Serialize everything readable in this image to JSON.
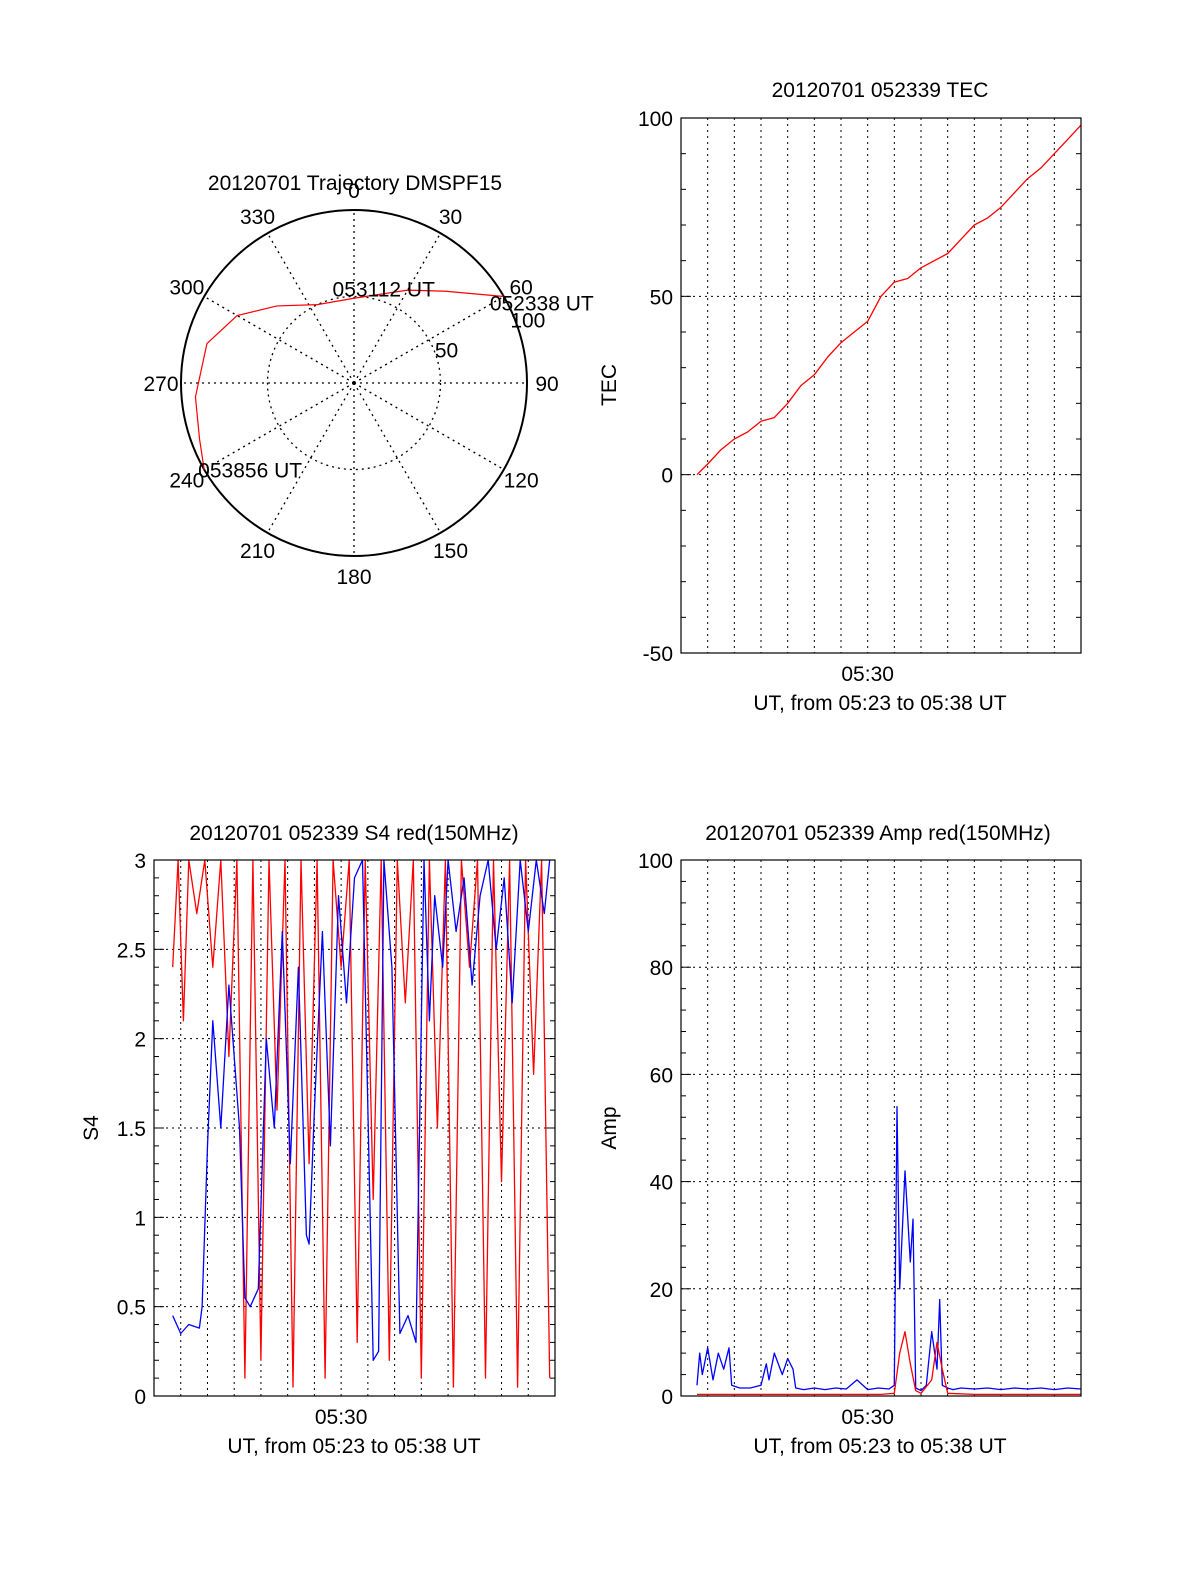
{
  "chart_data": [
    {
      "type": "polar-trajectory",
      "title": "20120701 Trajectory DMSPF15",
      "azimuth_labels": [
        "0",
        "30",
        "60",
        "90",
        "120",
        "150",
        "180",
        "210",
        "240",
        "270",
        "300",
        "330"
      ],
      "radial_labels": [
        "50",
        "100"
      ],
      "radial_range": [
        0,
        100
      ],
      "grid": true,
      "annotations": [
        {
          "text": "052338 UT",
          "azimuth": 60,
          "zenith": 100
        },
        {
          "text": "053112 UT",
          "azimuth": 25,
          "zenith": 50
        },
        {
          "text": "053856 UT",
          "azimuth": 240,
          "zenith": 100
        }
      ],
      "series": [
        {
          "color": "#ff0000",
          "points": [
            [
              60,
              100
            ],
            [
              45,
              75
            ],
            [
              30,
              62
            ],
            [
              0,
              49
            ],
            [
              -25,
              50
            ],
            [
              -45,
              63
            ],
            [
              -60,
              78
            ],
            [
              -75,
              88
            ],
            [
              -95,
              92
            ],
            [
              -110,
              95
            ],
            [
              -120,
              100
            ]
          ]
        }
      ]
    },
    {
      "type": "line",
      "title": "20120701 052339 TEC",
      "xlabel": "UT, from 05:23 to 05:38 UT",
      "ylabel": "TEC",
      "xlim": [
        0,
        15
      ],
      "ylim": [
        -50,
        100
      ],
      "yticks": [
        "-50",
        "0",
        "50",
        "100"
      ],
      "xticks": [
        {
          "value": 7,
          "label": "05:30"
        }
      ],
      "grid": true,
      "series": [
        {
          "color": "#ff0000",
          "x": [
            0.6,
            1.0,
            1.5,
            2.0,
            2.5,
            3.0,
            3.5,
            4.0,
            4.5,
            5.0,
            5.5,
            6.0,
            6.5,
            7.0,
            7.5,
            8.0,
            8.5,
            9.0,
            9.5,
            10.0,
            10.5,
            11.0,
            11.5,
            12.0,
            12.5,
            13.0,
            13.5,
            14.0,
            14.5,
            15.0
          ],
          "y": [
            0,
            3,
            7,
            10,
            12,
            15,
            16,
            20,
            25,
            28,
            33,
            37,
            40,
            43,
            50,
            54,
            55,
            58,
            60,
            62,
            66,
            70,
            72,
            75,
            79,
            83,
            86,
            90,
            94,
            98
          ]
        }
      ]
    },
    {
      "type": "line",
      "title": "20120701 052339 S4 red(150MHz)",
      "xlabel": "UT, from 05:23 to 05:38 UT",
      "ylabel": "S4",
      "xlim": [
        0,
        15
      ],
      "ylim": [
        0,
        3
      ],
      "yticks": [
        "0",
        "0.5",
        "1",
        "1.5",
        "2",
        "2.5",
        "3"
      ],
      "xticks": [
        {
          "value": 7,
          "label": "05:30"
        }
      ],
      "grid": true,
      "series": [
        {
          "color": "#ff0000",
          "x": [
            0.7,
            0.9,
            1.1,
            1.3,
            1.6,
            1.9,
            2.2,
            2.5,
            2.8,
            3.1,
            3.4,
            3.7,
            4.0,
            4.3,
            4.6,
            4.9,
            5.2,
            5.5,
            5.8,
            6.1,
            6.4,
            6.7,
            7.0,
            7.3,
            7.6,
            7.9,
            8.2,
            8.5,
            8.8,
            9.1,
            9.4,
            9.7,
            10.0,
            10.3,
            10.6,
            10.9,
            11.2,
            11.5,
            11.8,
            12.1,
            12.4,
            12.7,
            13.0,
            13.3,
            13.6,
            13.9,
            14.2,
            14.5,
            14.8
          ],
          "y": [
            2.4,
            3.0,
            2.1,
            3.0,
            2.7,
            3.0,
            2.4,
            3.0,
            1.9,
            3.0,
            0.1,
            3.0,
            0.2,
            3.0,
            1.6,
            3.0,
            0.05,
            3.0,
            1.3,
            3.0,
            0.1,
            3.0,
            2.4,
            3.0,
            0.3,
            3.0,
            1.1,
            3.0,
            0.2,
            3.0,
            2.2,
            3.0,
            0.1,
            3.0,
            1.5,
            3.0,
            0.05,
            3.0,
            2.4,
            3.0,
            0.1,
            3.0,
            1.2,
            3.0,
            0.05,
            3.0,
            1.8,
            3.0,
            0.1
          ]
        },
        {
          "color": "#0000ff",
          "x": [
            0.7,
            1.0,
            1.3,
            1.7,
            1.8,
            2.0,
            2.2,
            2.5,
            2.8,
            3.2,
            3.4,
            3.6,
            3.9,
            4.2,
            4.5,
            4.8,
            5.1,
            5.4,
            5.7,
            5.8,
            6.0,
            6.3,
            6.6,
            6.9,
            7.2,
            7.5,
            7.8,
            8.0,
            8.2,
            8.4,
            8.6,
            8.9,
            9.2,
            9.5,
            9.8,
            10.1,
            10.3,
            10.5,
            10.8,
            11.0,
            11.3,
            11.6,
            11.9,
            12.2,
            12.5,
            12.8,
            13.1,
            13.4,
            13.7,
            14.0,
            14.3,
            14.6,
            14.8
          ],
          "y": [
            0.45,
            0.35,
            0.4,
            0.38,
            0.5,
            1.4,
            2.1,
            1.5,
            2.3,
            1.5,
            0.55,
            0.5,
            0.6,
            2.0,
            1.5,
            2.6,
            1.3,
            2.4,
            0.9,
            0.85,
            1.6,
            2.6,
            1.4,
            2.8,
            2.2,
            2.9,
            3.0,
            1.6,
            0.2,
            0.25,
            3.0,
            2.4,
            0.35,
            0.45,
            0.3,
            3.0,
            2.1,
            2.8,
            2.4,
            3.0,
            2.6,
            2.9,
            2.3,
            2.8,
            3.0,
            2.5,
            2.9,
            2.2,
            3.0,
            2.6,
            3.0,
            2.7,
            3.0
          ]
        }
      ]
    },
    {
      "type": "line",
      "title": "20120701 052339 Amp red(150MHz)",
      "xlabel": "UT, from 05:23 to 05:38 UT",
      "ylabel": "Amp",
      "xlim": [
        0,
        15
      ],
      "ylim": [
        0,
        100
      ],
      "yticks": [
        "0",
        "20",
        "40",
        "60",
        "80",
        "100"
      ],
      "xticks": [
        {
          "value": 7,
          "label": "05:30"
        }
      ],
      "grid": true,
      "series": [
        {
          "color": "#0000ff",
          "x": [
            0.6,
            0.7,
            0.8,
            1.0,
            1.2,
            1.4,
            1.6,
            1.8,
            1.9,
            2.2,
            2.6,
            3.0,
            3.2,
            3.3,
            3.5,
            3.8,
            4.0,
            4.2,
            4.3,
            4.6,
            5.0,
            5.4,
            5.8,
            6.2,
            6.6,
            7.0,
            7.4,
            7.8,
            8.0,
            8.1,
            8.2,
            8.4,
            8.6,
            8.7,
            8.8,
            9.0,
            9.2,
            9.4,
            9.6,
            9.7,
            9.8,
            10.0,
            10.2,
            10.5,
            11.0,
            11.5,
            12.0,
            12.5,
            13.0,
            13.5,
            14.0,
            14.5,
            15.0
          ],
          "y": [
            2,
            8,
            4,
            9,
            3,
            8,
            5,
            9,
            2,
            1.5,
            1.5,
            2,
            6,
            3,
            8,
            4,
            7,
            5,
            1.5,
            1.2,
            1.5,
            1.2,
            1.5,
            1.3,
            3,
            1.2,
            1.5,
            1.3,
            2,
            54,
            20,
            42,
            25,
            33,
            1.5,
            1,
            2,
            12,
            5,
            18,
            2,
            1.5,
            1.2,
            1.5,
            1.3,
            1.5,
            1.2,
            1.5,
            1.3,
            1.5,
            1.2,
            1.5,
            1.3
          ]
        },
        {
          "color": "#ff0000",
          "x": [
            0.6,
            2.0,
            3.0,
            4.5,
            6.0,
            7.5,
            8.0,
            8.2,
            8.4,
            8.6,
            8.8,
            9.0,
            9.4,
            9.6,
            9.8,
            10.0,
            11.0,
            13.0,
            15.0
          ],
          "y": [
            0.3,
            0.3,
            0.3,
            0.3,
            0.3,
            0.3,
            0.5,
            8,
            12,
            6,
            1,
            0.5,
            3,
            10,
            5,
            0.5,
            0.3,
            0.3,
            0.3
          ]
        }
      ]
    }
  ]
}
